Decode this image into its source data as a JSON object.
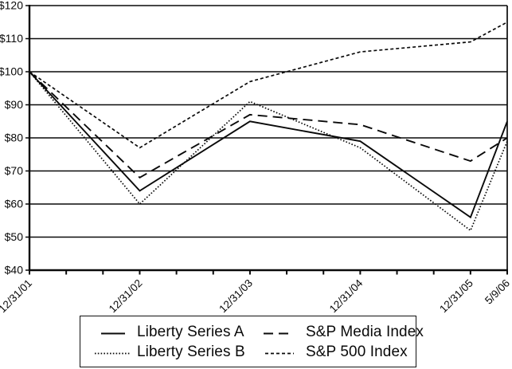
{
  "chart_data": {
    "type": "line",
    "title": "",
    "xlabel": "",
    "ylabel": "",
    "grid": "horizontal",
    "line_color": "#0a0a0a",
    "ylim": [
      40,
      120
    ],
    "y_ticks": [
      {
        "value": 40,
        "label": "$40"
      },
      {
        "value": 50,
        "label": "$50"
      },
      {
        "value": 60,
        "label": "$60"
      },
      {
        "value": 70,
        "label": "$70"
      },
      {
        "value": 80,
        "label": "$80"
      },
      {
        "value": 90,
        "label": "$90"
      },
      {
        "value": 100,
        "label": "$100"
      },
      {
        "value": 110,
        "label": "$110"
      },
      {
        "value": 120,
        "label": "$120"
      }
    ],
    "x_labels": [
      "12/31/01",
      "12/31/02",
      "12/31/03",
      "12/31/04",
      "12/31/05",
      "5/9/06"
    ],
    "x_positions_years": [
      0,
      1,
      2,
      3,
      4,
      4.3333
    ],
    "minor_ticks_per_year": 3,
    "series": [
      {
        "name": "Liberty Series A",
        "style": "solid",
        "values": [
          100,
          64,
          85,
          79,
          56,
          85
        ]
      },
      {
        "name": "Liberty Series B",
        "style": "fine-dotted",
        "values": [
          100,
          60,
          91,
          77,
          52,
          79
        ]
      },
      {
        "name": "S&P Media Index",
        "style": "long-dash",
        "values": [
          100,
          68,
          87,
          84,
          73,
          80
        ]
      },
      {
        "name": "S&P 500 Index",
        "style": "short-dash",
        "values": [
          100,
          77,
          97,
          106,
          109,
          115
        ]
      }
    ]
  },
  "legend": {
    "items": [
      {
        "label": "Liberty Series A",
        "style": "solid"
      },
      {
        "label": "S&P Media Index",
        "style": "long-dash"
      },
      {
        "label": "Liberty Series B",
        "style": "fine-dotted"
      },
      {
        "label": "S&P 500 Index",
        "style": "short-dash"
      }
    ]
  }
}
